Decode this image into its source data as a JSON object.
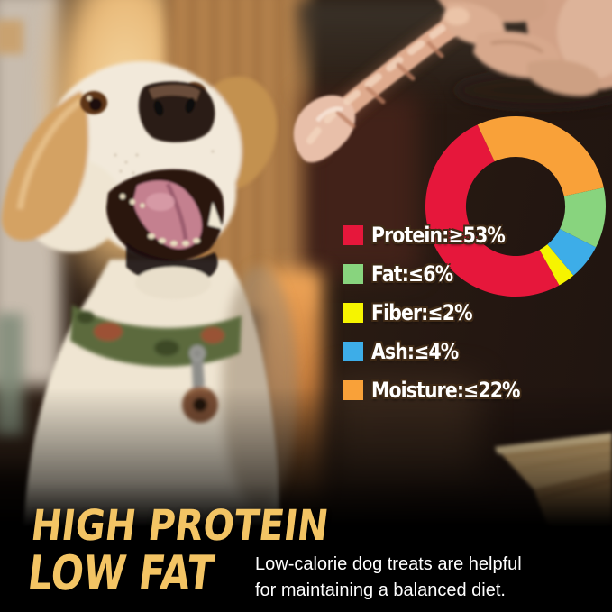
{
  "chart_data": {
    "type": "donut",
    "title": "",
    "legend_position": "left-of-chart",
    "hole_ratio": 0.55,
    "segments": [
      {
        "name": "Protein",
        "display": "Protein:≥53%",
        "comparator": "≥",
        "value": 53,
        "unit": "%",
        "color": "#e6173b",
        "arc_start_deg": 151,
        "arc_sweep_deg": 184
      },
      {
        "name": "Fat",
        "display": "Fat:≤6%",
        "comparator": "≤",
        "value": 6,
        "unit": "%",
        "color": "#88d47e",
        "arc_start_deg": 78,
        "arc_sweep_deg": 39
      },
      {
        "name": "Fiber",
        "display": "Fiber:≤2%",
        "comparator": "≤",
        "value": 2,
        "unit": "%",
        "color": "#f6f400",
        "arc_start_deg": 140,
        "arc_sweep_deg": 11
      },
      {
        "name": "Ash",
        "display": "Ash:≤4%",
        "comparator": "≤",
        "value": 4,
        "unit": "%",
        "color": "#3dade8",
        "arc_start_deg": 117,
        "arc_sweep_deg": 23
      },
      {
        "name": "Moisture",
        "display": "Moisture:≤22%",
        "comparator": "≤",
        "value": 22,
        "unit": "%",
        "color": "#f9a139",
        "arc_start_deg": -25,
        "arc_sweep_deg": 103
      }
    ]
  },
  "headline": {
    "line1": "HIGH PROTEIN",
    "line2": "LOW FAT",
    "color": "#f3c464"
  },
  "tagline": {
    "line1": "Low-calorie dog treats are helpful",
    "line2": "for maintaining a balanced diet.",
    "color": "#ffffff"
  },
  "scene": {
    "subject": "cream labrador dog smiling with open mouth, wearing green camo collar with round tag",
    "prop": "hand holding a twisted chicken jerky strip at top right",
    "setting": "warm blurred home interior with wooden bench at lower right"
  }
}
